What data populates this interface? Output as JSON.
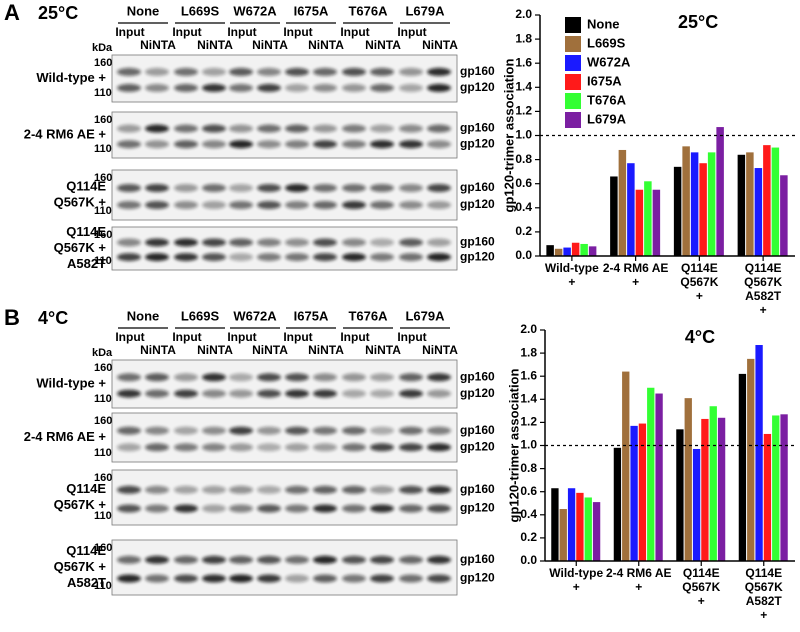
{
  "panels": [
    {
      "label": "A",
      "temperature": "25°C",
      "kda": "kDa",
      "mutants": [
        "None",
        "L669S",
        "W672A",
        "I675A",
        "T676A",
        "L679A"
      ],
      "lanes": [
        "Input",
        "NiNTA"
      ],
      "rows": [
        [
          "Wild-type +"
        ],
        [
          "2-4 RM6 AE +"
        ],
        [
          "Q114E",
          "Q567K +"
        ],
        [
          "Q114E",
          "Q567K +",
          "A582T"
        ]
      ],
      "markers": [
        "160",
        "110"
      ],
      "bands": [
        "gp160",
        "gp120"
      ]
    },
    {
      "label": "B",
      "temperature": "4°C",
      "kda": "kDa",
      "mutants": [
        "None",
        "L669S",
        "W672A",
        "I675A",
        "T676A",
        "L679A"
      ],
      "lanes": [
        "Input",
        "NiNTA"
      ],
      "rows": [
        [
          "Wild-type +"
        ],
        [
          "2-4 RM6 AE +"
        ],
        [
          "Q114E",
          "Q567K +"
        ],
        [
          "Q114E",
          "Q567K +",
          "A582T"
        ]
      ],
      "markers": [
        "160",
        "110"
      ],
      "bands": [
        "gp160",
        "gp120"
      ]
    }
  ],
  "chart_data": [
    {
      "type": "bar",
      "title": "25°C",
      "y_label": "gp120-trimer association",
      "categories": [
        [
          "Wild-type",
          "+"
        ],
        [
          "2-4 RM6 AE",
          "+"
        ],
        [
          "Q114E",
          "Q567K",
          "+"
        ],
        [
          "Q114E",
          "Q567K",
          "A582T",
          "+"
        ]
      ],
      "series": [
        {
          "name": "None",
          "color": "#000000",
          "values": [
            0.09,
            0.66,
            0.74,
            0.84
          ]
        },
        {
          "name": "L669S",
          "color": "#a0703c",
          "values": [
            0.06,
            0.88,
            0.91,
            0.86
          ]
        },
        {
          "name": "W672A",
          "color": "#1a1aff",
          "values": [
            0.07,
            0.77,
            0.86,
            0.73
          ]
        },
        {
          "name": "I675A",
          "color": "#ff1a1a",
          "values": [
            0.11,
            0.55,
            0.77,
            0.92
          ]
        },
        {
          "name": "T676A",
          "color": "#33ff33",
          "values": [
            0.1,
            0.62,
            0.86,
            0.9
          ]
        },
        {
          "name": "L679A",
          "color": "#7b1fa2",
          "values": [
            0.08,
            0.55,
            1.07,
            0.67
          ]
        }
      ],
      "ylim": [
        0,
        2
      ],
      "yticks": [
        {
          "value": 0,
          "label": "0.0"
        },
        0.2,
        0.4,
        0.6,
        0.8,
        {
          "value": 1,
          "label": "1.0"
        },
        1.2,
        1.4,
        1.6,
        1.8,
        {
          "value": 2,
          "label": "2.0"
        }
      ],
      "hline": 1,
      "grid": false,
      "legend": "top-left"
    },
    {
      "type": "bar",
      "title": "4°C",
      "y_label": "gp120-trimer association",
      "categories": [
        [
          "Wild-type",
          "+"
        ],
        [
          "2-4 RM6 AE",
          "+"
        ],
        [
          "Q114E",
          "Q567K",
          "+"
        ],
        [
          "Q114E",
          "Q567K",
          "A582T",
          "+"
        ]
      ],
      "series": [
        {
          "name": "None",
          "color": "#000000",
          "values": [
            0.63,
            0.98,
            1.14,
            1.62
          ]
        },
        {
          "name": "L669S",
          "color": "#a0703c",
          "values": [
            0.45,
            1.64,
            1.41,
            1.75
          ]
        },
        {
          "name": "W672A",
          "color": "#1a1aff",
          "values": [
            0.63,
            1.17,
            0.97,
            1.87
          ]
        },
        {
          "name": "I675A",
          "color": "#ff1a1a",
          "values": [
            0.59,
            1.19,
            1.23,
            1.1
          ]
        },
        {
          "name": "T676A",
          "color": "#33ff33",
          "values": [
            0.55,
            1.5,
            1.34,
            1.26
          ]
        },
        {
          "name": "L679A",
          "color": "#7b1fa2",
          "values": [
            0.51,
            1.45,
            1.24,
            1.27
          ]
        }
      ],
      "ylim": [
        0,
        2
      ],
      "yticks": [
        {
          "value": 0,
          "label": "0.0"
        },
        0.2,
        0.4,
        0.6,
        0.8,
        {
          "value": 1,
          "label": "1.0"
        },
        1.2,
        1.4,
        1.6,
        1.8,
        {
          "value": 2,
          "label": "2.0"
        }
      ],
      "hline": 1,
      "grid": false
    }
  ]
}
